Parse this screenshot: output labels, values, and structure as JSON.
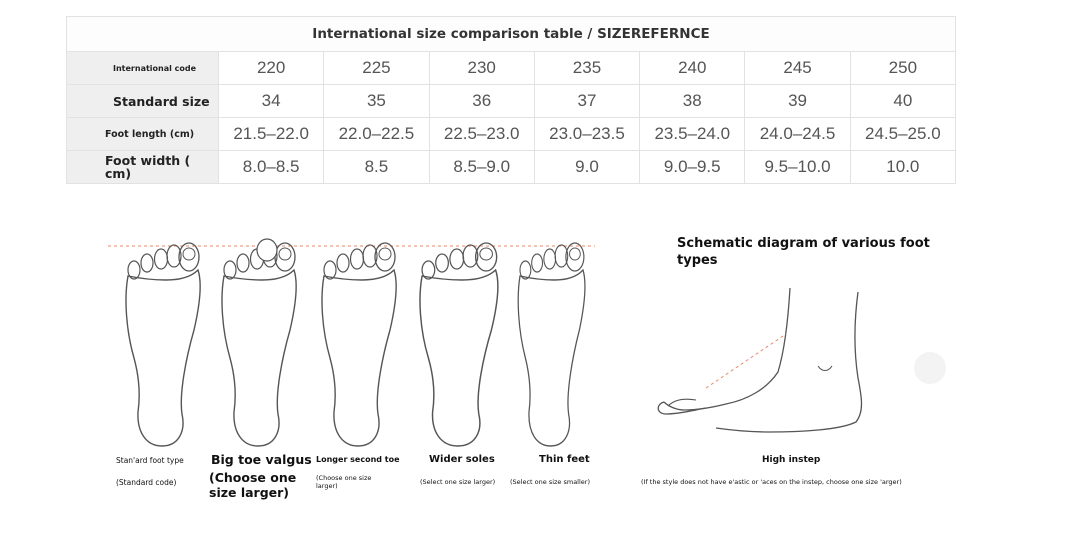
{
  "table": {
    "title": "International size comparison table / SIZEREFERNCE",
    "rows": [
      {
        "label": "International code",
        "values": [
          "220",
          "225",
          "230",
          "235",
          "240",
          "245",
          "250"
        ]
      },
      {
        "label": "Standard size",
        "values": [
          "34",
          "35",
          "36",
          "37",
          "38",
          "39",
          "40"
        ]
      },
      {
        "label": "Foot length (cm)",
        "values": [
          "21.5–22.0",
          "22.0–22.5",
          "22.5–23.0",
          "23.0–23.5",
          "23.5–24.0",
          "24.0–24.5",
          "24.5–25.0"
        ]
      },
      {
        "label": "Foot width ( cm)",
        "values": [
          "8.0–8.5",
          "8.5",
          "8.5–9.0",
          "9.0",
          "9.0–9.5",
          "9.5–10.0",
          "10.0"
        ]
      }
    ]
  },
  "foot_types": [
    {
      "name": "Stan'ard foot type",
      "note": "(Standard code)"
    },
    {
      "name": "Big toe valgus",
      "note": "(Choose one size larger)"
    },
    {
      "name": "Longer second toe",
      "note": "(Choose one size larger)"
    },
    {
      "name": "Wider soles",
      "note": "(Select one size larger)"
    },
    {
      "name": "Thin feet",
      "note": "(Select one size smaller)"
    }
  ],
  "schematic": {
    "title": "Schematic diagram of various foot types",
    "label": "High instep",
    "note": "(If the style does not have e'astic or 'aces on the instep, choose one size 'arger)"
  },
  "colors": {
    "guide_line": "#e58a6e",
    "outline": "#555555",
    "header_bg": "#efefef",
    "border": "#e2e2e2"
  }
}
